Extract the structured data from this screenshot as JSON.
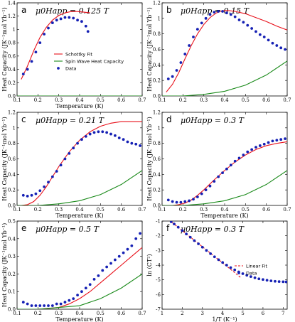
{
  "figure": {
    "legend_entries": [
      "Schottky Fit",
      "Spin Wave Heat Capacity",
      "Data"
    ],
    "legend_entries_f": [
      "Linear Fit",
      "Data"
    ],
    "colors": {
      "schottky": "#e8101a",
      "spin_wave": "#1a8a1a",
      "data": "#1520b4",
      "linear_fit": "#e8101a"
    }
  },
  "chart_data": [
    {
      "panel": "a",
      "type": "scatter",
      "field_label": "μ0Happ = 0.125 T",
      "xlabel": "Temperature (K)",
      "ylabel": "Heat Capacity (JK⁻¹mol Yb⁻¹)",
      "xlim": [
        0.1,
        0.7
      ],
      "ylim": [
        0.0,
        1.4
      ],
      "xticks": [
        0.1,
        0.2,
        0.3,
        0.4,
        0.5,
        0.6,
        0.7
      ],
      "yticks": [
        0.0,
        0.2,
        0.4,
        0.6,
        0.8,
        1.0,
        1.2,
        1.4
      ],
      "legend": "bottom-right",
      "series": [
        {
          "name": "Schottky Fit",
          "style": "line",
          "x": [
            0.12,
            0.15,
            0.18,
            0.21,
            0.24,
            0.27,
            0.3,
            0.33,
            0.36,
            0.39,
            0.42,
            0.45
          ],
          "y": [
            0.25,
            0.45,
            0.68,
            0.88,
            1.03,
            1.14,
            1.21,
            1.25,
            1.27,
            1.27,
            1.26,
            1.25
          ]
        },
        {
          "name": "Spin Wave Heat Capacity",
          "style": "line",
          "x": [
            0.1,
            0.2,
            0.3,
            0.4,
            0.5,
            0.6,
            0.7
          ],
          "y": [
            0.0,
            0.0,
            0.0,
            0.0,
            0.0,
            0.0,
            0.0
          ]
        },
        {
          "name": "Data",
          "style": "points",
          "x": [
            0.13,
            0.15,
            0.17,
            0.19,
            0.21,
            0.23,
            0.25,
            0.27,
            0.29,
            0.31,
            0.33,
            0.35,
            0.37,
            0.39,
            0.41,
            0.43,
            0.44
          ],
          "y": [
            0.33,
            0.4,
            0.52,
            0.66,
            0.8,
            0.93,
            1.02,
            1.1,
            1.14,
            1.16,
            1.18,
            1.18,
            1.17,
            1.14,
            1.12,
            1.05,
            0.97
          ]
        }
      ]
    },
    {
      "panel": "b",
      "type": "scatter",
      "field_label": "μ0Happ = 0.15 T",
      "xlabel": "",
      "ylabel": "Heat Capacity (JK⁻¹mol Yb⁻¹)",
      "xlim": [
        0.1,
        0.7
      ],
      "ylim": [
        0.0,
        1.2
      ],
      "xticks": [
        0.1,
        0.2,
        0.3,
        0.4,
        0.5,
        0.6,
        0.7
      ],
      "yticks": [
        0.0,
        0.2,
        0.4,
        0.6,
        0.8,
        1.0,
        1.2
      ],
      "series": [
        {
          "name": "Schottky Fit",
          "style": "line",
          "x": [
            0.12,
            0.15,
            0.18,
            0.21,
            0.24,
            0.27,
            0.3,
            0.33,
            0.36,
            0.39,
            0.42,
            0.45,
            0.5,
            0.55,
            0.6,
            0.65,
            0.7
          ],
          "y": [
            0.05,
            0.15,
            0.3,
            0.48,
            0.65,
            0.8,
            0.92,
            1.01,
            1.07,
            1.1,
            1.1,
            1.09,
            1.06,
            1.01,
            0.96,
            0.9,
            0.85
          ]
        },
        {
          "name": "Spin Wave Heat Capacity",
          "style": "line",
          "x": [
            0.1,
            0.2,
            0.3,
            0.4,
            0.5,
            0.6,
            0.7
          ],
          "y": [
            0.0,
            0.0,
            0.02,
            0.06,
            0.14,
            0.27,
            0.45
          ]
        },
        {
          "name": "Data",
          "style": "points",
          "x": [
            0.13,
            0.15,
            0.17,
            0.19,
            0.21,
            0.23,
            0.25,
            0.27,
            0.29,
            0.31,
            0.33,
            0.35,
            0.37,
            0.39,
            0.41,
            0.43,
            0.45,
            0.47,
            0.49,
            0.51,
            0.53,
            0.55,
            0.57,
            0.59,
            0.61,
            0.63,
            0.65,
            0.67,
            0.69
          ],
          "y": [
            0.22,
            0.25,
            0.33,
            0.43,
            0.54,
            0.65,
            0.76,
            0.86,
            0.94,
            1.0,
            1.05,
            1.08,
            1.09,
            1.09,
            1.07,
            1.05,
            1.02,
            0.98,
            0.95,
            0.91,
            0.87,
            0.83,
            0.79,
            0.76,
            0.72,
            0.68,
            0.65,
            0.62,
            0.6
          ]
        }
      ]
    },
    {
      "panel": "c",
      "type": "scatter",
      "field_label": "μ0Happ = 0.21 T",
      "xlabel": "Temperature (K)",
      "ylabel": "Heat Capacity (JK⁻¹mol Yb⁻¹)",
      "xlim": [
        0.1,
        0.7
      ],
      "ylim": [
        0.0,
        1.2
      ],
      "xticks": [
        0.1,
        0.2,
        0.3,
        0.4,
        0.5,
        0.6,
        0.7
      ],
      "yticks": [
        0.0,
        0.2,
        0.4,
        0.6,
        0.8,
        1.0,
        1.2
      ],
      "series": [
        {
          "name": "Schottky Fit",
          "style": "line",
          "x": [
            0.12,
            0.15,
            0.18,
            0.21,
            0.24,
            0.27,
            0.3,
            0.35,
            0.4,
            0.45,
            0.5,
            0.55,
            0.6,
            0.65,
            0.7
          ],
          "y": [
            0.0,
            0.01,
            0.05,
            0.13,
            0.24,
            0.37,
            0.5,
            0.69,
            0.84,
            0.95,
            1.02,
            1.06,
            1.08,
            1.08,
            1.08
          ]
        },
        {
          "name": "Spin Wave Heat Capacity",
          "style": "line",
          "x": [
            0.1,
            0.2,
            0.3,
            0.4,
            0.5,
            0.6,
            0.7
          ],
          "y": [
            0.0,
            0.0,
            0.02,
            0.06,
            0.14,
            0.27,
            0.45
          ]
        },
        {
          "name": "Data",
          "style": "points",
          "x": [
            0.13,
            0.15,
            0.17,
            0.19,
            0.21,
            0.23,
            0.25,
            0.27,
            0.29,
            0.31,
            0.33,
            0.35,
            0.37,
            0.39,
            0.41,
            0.43,
            0.45,
            0.47,
            0.49,
            0.51,
            0.53,
            0.55,
            0.57,
            0.59,
            0.61,
            0.63,
            0.65,
            0.67,
            0.69
          ],
          "y": [
            0.13,
            0.12,
            0.13,
            0.15,
            0.19,
            0.24,
            0.3,
            0.37,
            0.44,
            0.52,
            0.6,
            0.67,
            0.74,
            0.8,
            0.85,
            0.89,
            0.92,
            0.94,
            0.95,
            0.95,
            0.94,
            0.92,
            0.9,
            0.87,
            0.85,
            0.82,
            0.8,
            0.79,
            0.77
          ]
        }
      ]
    },
    {
      "panel": "d",
      "type": "scatter",
      "field_label": "μ0Happ = 0.3 T",
      "xlabel": "Temperature (K)",
      "ylabel": "Heat Capacity (JK⁻¹mol Yb⁻¹)",
      "xlim": [
        0.1,
        0.7
      ],
      "ylim": [
        0.0,
        1.2
      ],
      "xticks": [
        0.1,
        0.2,
        0.3,
        0.4,
        0.5,
        0.6,
        0.7
      ],
      "yticks": [
        0.0,
        0.2,
        0.4,
        0.6,
        0.8,
        1.0,
        1.2
      ],
      "series": [
        {
          "name": "Schottky Fit",
          "style": "line",
          "x": [
            0.12,
            0.15,
            0.18,
            0.21,
            0.24,
            0.27,
            0.3,
            0.35,
            0.4,
            0.45,
            0.5,
            0.55,
            0.6,
            0.65,
            0.7
          ],
          "y": [
            0.0,
            0.0,
            0.01,
            0.03,
            0.07,
            0.13,
            0.2,
            0.33,
            0.45,
            0.56,
            0.65,
            0.72,
            0.77,
            0.8,
            0.82
          ]
        },
        {
          "name": "Spin Wave Heat Capacity",
          "style": "line",
          "x": [
            0.1,
            0.2,
            0.3,
            0.4,
            0.5,
            0.6,
            0.7
          ],
          "y": [
            0.0,
            0.0,
            0.02,
            0.06,
            0.14,
            0.27,
            0.45
          ]
        },
        {
          "name": "Data",
          "style": "points",
          "x": [
            0.13,
            0.15,
            0.17,
            0.19,
            0.21,
            0.23,
            0.25,
            0.27,
            0.29,
            0.31,
            0.33,
            0.35,
            0.37,
            0.39,
            0.41,
            0.43,
            0.45,
            0.47,
            0.49,
            0.51,
            0.53,
            0.55,
            0.57,
            0.59,
            0.61,
            0.63,
            0.65,
            0.67,
            0.69
          ],
          "y": [
            0.07,
            0.05,
            0.04,
            0.04,
            0.05,
            0.06,
            0.08,
            0.11,
            0.15,
            0.2,
            0.25,
            0.31,
            0.37,
            0.42,
            0.47,
            0.52,
            0.57,
            0.61,
            0.65,
            0.69,
            0.72,
            0.75,
            0.77,
            0.79,
            0.81,
            0.83,
            0.84,
            0.85,
            0.86
          ]
        }
      ]
    },
    {
      "panel": "e",
      "type": "scatter",
      "field_label": "μ0Happ = 0.5 T",
      "xlabel": "Temperature (K)",
      "ylabel": "Heat Capacity (JK⁻¹mol Yb⁻¹)",
      "xlim": [
        0.1,
        0.7
      ],
      "ylim": [
        0.0,
        0.5
      ],
      "xticks": [
        0.1,
        0.2,
        0.3,
        0.4,
        0.5,
        0.6,
        0.7
      ],
      "yticks": [
        0.0,
        0.1,
        0.2,
        0.3,
        0.4,
        0.5
      ],
      "series": [
        {
          "name": "Schottky Fit",
          "style": "line",
          "x": [
            0.12,
            0.2,
            0.3,
            0.35,
            0.4,
            0.45,
            0.5,
            0.55,
            0.6,
            0.65,
            0.7
          ],
          "y": [
            0.0,
            0.0,
            0.01,
            0.03,
            0.06,
            0.1,
            0.15,
            0.2,
            0.25,
            0.3,
            0.35
          ]
        },
        {
          "name": "Spin Wave Heat Capacity",
          "style": "line",
          "x": [
            0.1,
            0.2,
            0.3,
            0.4,
            0.5,
            0.6,
            0.7
          ],
          "y": [
            0.0,
            0.0,
            0.01,
            0.02,
            0.06,
            0.12,
            0.2
          ]
        },
        {
          "name": "Data",
          "style": "points",
          "x": [
            0.13,
            0.15,
            0.17,
            0.19,
            0.21,
            0.23,
            0.25,
            0.27,
            0.29,
            0.31,
            0.33,
            0.35,
            0.37,
            0.39,
            0.41,
            0.43,
            0.45,
            0.47,
            0.49,
            0.51,
            0.53,
            0.55,
            0.57,
            0.59,
            0.61,
            0.63,
            0.65,
            0.67,
            0.69
          ],
          "y": [
            0.04,
            0.03,
            0.02,
            0.02,
            0.02,
            0.02,
            0.02,
            0.02,
            0.03,
            0.03,
            0.04,
            0.05,
            0.06,
            0.08,
            0.1,
            0.12,
            0.14,
            0.17,
            0.19,
            0.22,
            0.24,
            0.26,
            0.28,
            0.3,
            0.32,
            0.34,
            0.36,
            0.4,
            0.43
          ]
        }
      ]
    },
    {
      "panel": "f",
      "type": "scatter",
      "field_label": "μ0Happ = 0.3 T",
      "xlabel": "1/T (K⁻¹)",
      "ylabel": "ln (CT²)",
      "xlim": [
        1,
        7.2
      ],
      "ylim": [
        -7,
        -1
      ],
      "xticks": [
        1,
        2,
        3,
        4,
        5,
        6,
        7
      ],
      "yticks": [
        -7,
        -6,
        -5,
        -4,
        -3,
        -2,
        -1
      ],
      "legend": "center-right",
      "series": [
        {
          "name": "Linear Fit",
          "style": "dashed",
          "x": [
            1.5,
            2.0,
            2.5,
            3.0,
            3.5,
            4.0,
            4.5,
            4.9
          ],
          "y": [
            -1.1,
            -1.65,
            -2.2,
            -2.75,
            -3.3,
            -3.85,
            -4.4,
            -4.85
          ]
        },
        {
          "name": "Data",
          "style": "points",
          "x": [
            1.45,
            1.6,
            1.8,
            2.0,
            2.2,
            2.4,
            2.6,
            2.8,
            3.0,
            3.2,
            3.4,
            3.6,
            3.8,
            4.0,
            4.2,
            4.4,
            4.6,
            4.8,
            5.0,
            5.2,
            5.4,
            5.6,
            5.8,
            6.0,
            6.2,
            6.4,
            6.6,
            6.8,
            7.0,
            7.15
          ],
          "y": [
            -1.05,
            -1.2,
            -1.42,
            -1.65,
            -1.88,
            -2.1,
            -2.33,
            -2.55,
            -2.78,
            -3.0,
            -3.22,
            -3.43,
            -3.63,
            -3.82,
            -4.0,
            -4.17,
            -4.32,
            -4.46,
            -4.58,
            -4.69,
            -4.78,
            -4.86,
            -4.93,
            -4.98,
            -5.03,
            -5.07,
            -5.1,
            -5.12,
            -5.13,
            -5.14
          ]
        }
      ]
    }
  ]
}
